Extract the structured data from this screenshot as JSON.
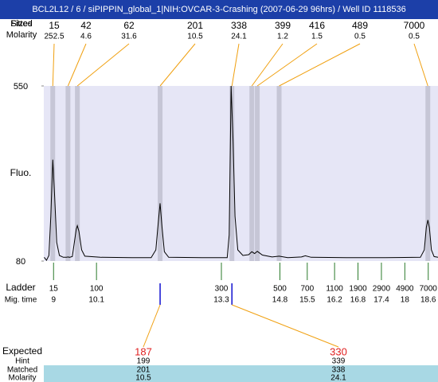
{
  "title": "BCL2L12 / 6 / siPIPPIN_global_1|NIH:OVCAR-3-Crashing (2007-06-29 96hrs) / Well ID 1118536",
  "chart_data": {
    "type": "line",
    "fitted_label": "Fitted",
    "size_label": "Sizes",
    "peak_molarity_label": "Molarity",
    "peaks": {
      "sizes": [
        15,
        42,
        62,
        201,
        338,
        399,
        416,
        489,
        7000
      ],
      "molarity": [
        252.5,
        4.6,
        31.6,
        10.5,
        24.1,
        1.2,
        1.5,
        0.5,
        0.5
      ],
      "times": [
        8.98,
        9.37,
        9.61,
        11.73,
        13.57,
        14.08,
        14.22,
        14.78,
        18.59
      ]
    },
    "ylabel": "Fluo.",
    "ylim": [
      80,
      550
    ],
    "yticks": [
      80,
      550
    ],
    "xlim": [
      8.75,
      18.85
    ],
    "color": "#000000",
    "x": [
      8.76,
      8.82,
      8.88,
      8.93,
      8.98,
      9.03,
      9.08,
      9.15,
      9.25,
      9.33,
      9.37,
      9.41,
      9.48,
      9.52,
      9.58,
      9.61,
      9.65,
      9.72,
      9.8,
      10.2,
      11.0,
      11.5,
      11.62,
      11.68,
      11.73,
      11.78,
      11.84,
      11.95,
      12.8,
      13.45,
      13.5,
      13.55,
      13.6,
      13.65,
      13.72,
      13.85,
      14.0,
      14.08,
      14.15,
      14.22,
      14.35,
      14.6,
      14.78,
      15.0,
      15.35,
      15.45,
      15.6,
      16.5,
      17.5,
      18.4,
      18.5,
      18.55,
      18.59,
      18.63,
      18.68,
      18.75,
      18.85
    ],
    "values": [
      90,
      82,
      95,
      200,
      352,
      250,
      130,
      95,
      90,
      90,
      91,
      90,
      92,
      120,
      165,
      175,
      160,
      110,
      93,
      90,
      89,
      89,
      110,
      180,
      235,
      170,
      105,
      90,
      89,
      89,
      150,
      550,
      400,
      200,
      110,
      95,
      97,
      105,
      100,
      106,
      96,
      91,
      93,
      89,
      91,
      94,
      90,
      89,
      89,
      90,
      110,
      170,
      190,
      170,
      110,
      92,
      90
    ],
    "ladder": {
      "label": "Ladder",
      "time_label": "Mig. time",
      "sizes": [
        15,
        100,
        300,
        500,
        700,
        1100,
        1900,
        2900,
        4900,
        7000
      ],
      "times": [
        9,
        10.1,
        13.3,
        14.8,
        15.5,
        16.2,
        16.8,
        17.4,
        18,
        18.6
      ]
    },
    "expected": {
      "label": "Expected",
      "hint_label": "Hint",
      "matched_label": "Matched",
      "molarity_label": "Molarity",
      "values": [
        187,
        330
      ],
      "hint": [
        199,
        339
      ],
      "matched": [
        201,
        338
      ],
      "molarity": [
        10.5,
        24.1
      ],
      "times": [
        11.73,
        13.57
      ]
    }
  }
}
